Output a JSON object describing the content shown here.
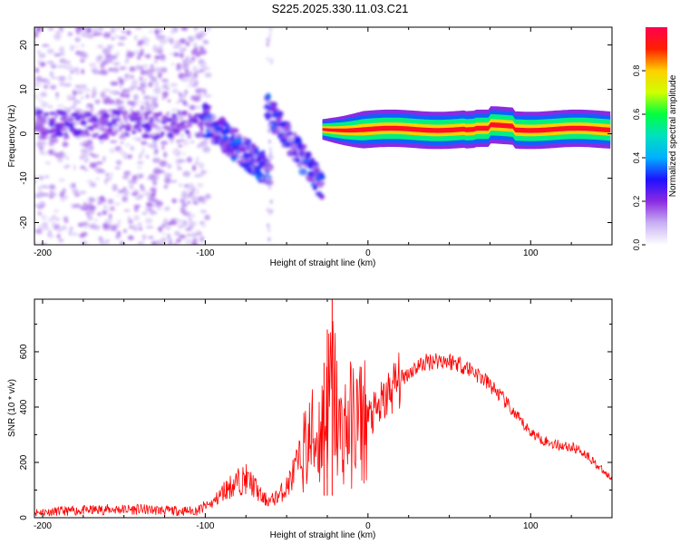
{
  "title": "S225.2025.330.11.03.C21",
  "chart_data": [
    {
      "type": "heatmap",
      "xlabel": "Height of straight line (km)",
      "ylabel": "Frequency (Hz)",
      "xlim": [
        -205,
        150
      ],
      "ylim": [
        -25,
        24
      ],
      "xticks": [
        -200,
        -100,
        0,
        100
      ],
      "yticks": [
        -20,
        -10,
        0,
        10,
        20
      ],
      "colorbar": {
        "label": "Normalized spectral amplitude",
        "range": [
          0,
          1
        ],
        "ticks": [
          "0.0",
          "0.2",
          "0.4",
          "0.6",
          "0.8"
        ],
        "tick_values": [
          0.0,
          0.2,
          0.4,
          0.6,
          0.8
        ],
        "stops": [
          "#ffffff",
          "#c9b0f4",
          "#8a2be2",
          "#1f10ff",
          "#00b0ff",
          "#00e0c0",
          "#00ff40",
          "#d0ff00",
          "#ffd000",
          "#ff2000",
          "#ff0050"
        ]
      },
      "features": {
        "scatter_region_km": [
          -205,
          -98
        ],
        "scatter_band_hz": [
          -25,
          24
        ],
        "descending_track_km": [
          -100,
          -60
        ],
        "descending_track_hz": [
          3,
          -9
        ],
        "second_track_km": [
          -62,
          -28
        ],
        "second_track_hz": [
          6,
          -12
        ],
        "ridge_km": [
          -28,
          150
        ],
        "ridge_hz": 1,
        "ridge_peak_value": 0.95
      }
    },
    {
      "type": "line",
      "xlabel": "Height of straight line (km)",
      "ylabel": "SNR (10 * v/v)",
      "xlim": [
        -205,
        150
      ],
      "ylim": [
        0,
        790
      ],
      "xticks": [
        -200,
        -100,
        0,
        100
      ],
      "yticks": [
        0,
        200,
        400,
        600
      ],
      "series": [
        {
          "name": "SNR",
          "color": "#ff0000",
          "x": [
            -205,
            -180,
            -160,
            -140,
            -120,
            -105,
            -95,
            -88,
            -80,
            -75,
            -70,
            -65,
            -60,
            -55,
            -50,
            -45,
            -40,
            -35,
            -30,
            -25,
            -22,
            -20,
            -18,
            -15,
            -10,
            -5,
            0,
            5,
            10,
            15,
            20,
            25,
            30,
            35,
            40,
            45,
            50,
            55,
            60,
            65,
            70,
            75,
            80,
            85,
            90,
            95,
            100,
            105,
            110,
            115,
            120,
            125,
            130,
            135,
            140,
            145,
            150
          ],
          "y": [
            20,
            25,
            30,
            30,
            25,
            25,
            55,
            100,
            130,
            140,
            115,
            70,
            60,
            80,
            110,
            170,
            230,
            280,
            300,
            380,
            480,
            420,
            300,
            320,
            340,
            350,
            360,
            380,
            420,
            470,
            500,
            525,
            545,
            560,
            570,
            570,
            565,
            560,
            545,
            530,
            505,
            480,
            450,
            415,
            375,
            340,
            310,
            290,
            275,
            265,
            260,
            255,
            245,
            225,
            195,
            165,
            140
          ]
        }
      ],
      "spikes": [
        {
          "x": -22,
          "y": 790
        },
        {
          "x": -25,
          "y": 680
        },
        {
          "x": -27,
          "y": 560
        }
      ]
    }
  ]
}
